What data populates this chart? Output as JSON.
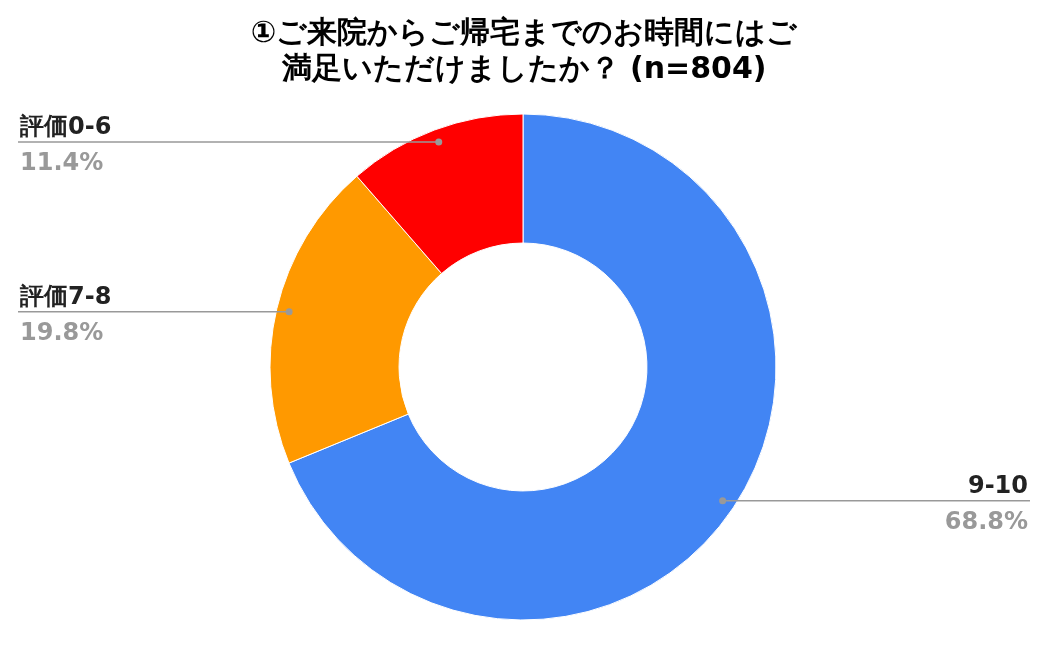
{
  "chart_data": {
    "type": "donut",
    "title": "①ご来院からご帰宅までのお時間にはご満足いただけましたか？ (n=804)",
    "categories": [
      "9-10",
      "評価7-8",
      "評価0-6"
    ],
    "values": [
      68.8,
      19.8,
      11.4
    ],
    "colors": [
      "#4285f4",
      "#ff9900",
      "#ff0000"
    ],
    "value_labels": [
      "68.8%",
      "19.8%",
      "11.4%"
    ],
    "legend": false
  }
}
